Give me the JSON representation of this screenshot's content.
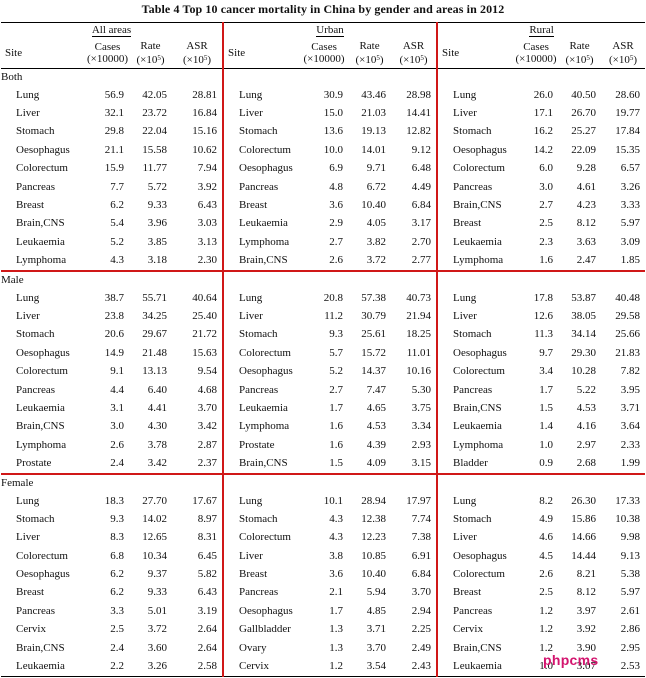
{
  "title": "Table 4   Top 10 cancer mortality in China by gender and areas in 2012",
  "areas": [
    "All areas",
    "Urban",
    "Rural"
  ],
  "column_headers": {
    "site": "Site",
    "cases_line1": "Cases",
    "cases_line2": "(×10000)",
    "rate_line1": "Rate",
    "rate_line2": "(×10",
    "asr_line1": "ASR",
    "asr_line2": "(×10",
    "sup": "5",
    "close": ")"
  },
  "groups": [
    {
      "name": "Both",
      "rows": [
        [
          [
            "Lung",
            "56.9",
            "42.05",
            "28.81"
          ],
          [
            "Lung",
            "30.9",
            "43.46",
            "28.98"
          ],
          [
            "Lung",
            "26.0",
            "40.50",
            "28.60"
          ]
        ],
        [
          [
            "Liver",
            "32.1",
            "23.72",
            "16.84"
          ],
          [
            "Liver",
            "15.0",
            "21.03",
            "14.41"
          ],
          [
            "Liver",
            "17.1",
            "26.70",
            "19.77"
          ]
        ],
        [
          [
            "Stomach",
            "29.8",
            "22.04",
            "15.16"
          ],
          [
            "Stomach",
            "13.6",
            "19.13",
            "12.82"
          ],
          [
            "Stomach",
            "16.2",
            "25.27",
            "17.84"
          ]
        ],
        [
          [
            "Oesophagus",
            "21.1",
            "15.58",
            "10.62"
          ],
          [
            "Colorectum",
            "10.0",
            "14.01",
            "9.12"
          ],
          [
            "Oesophagus",
            "14.2",
            "22.09",
            "15.35"
          ]
        ],
        [
          [
            "Colorectum",
            "15.9",
            "11.77",
            "7.94"
          ],
          [
            "Oesophagus",
            "6.9",
            "9.71",
            "6.48"
          ],
          [
            "Colorectum",
            "6.0",
            "9.28",
            "6.57"
          ]
        ],
        [
          [
            "Pancreas",
            "7.7",
            "5.72",
            "3.92"
          ],
          [
            "Pancreas",
            "4.8",
            "6.72",
            "4.49"
          ],
          [
            "Pancreas",
            "3.0",
            "4.61",
            "3.26"
          ]
        ],
        [
          [
            "Breast",
            "6.2",
            "9.33",
            "6.43"
          ],
          [
            "Breast",
            "3.6",
            "10.40",
            "6.84"
          ],
          [
            "Brain,CNS",
            "2.7",
            "4.23",
            "3.33"
          ]
        ],
        [
          [
            "Brain,CNS",
            "5.4",
            "3.96",
            "3.03"
          ],
          [
            "Leukaemia",
            "2.9",
            "4.05",
            "3.17"
          ],
          [
            "Breast",
            "2.5",
            "8.12",
            "5.97"
          ]
        ],
        [
          [
            "Leukaemia",
            "5.2",
            "3.85",
            "3.13"
          ],
          [
            "Lymphoma",
            "2.7",
            "3.82",
            "2.70"
          ],
          [
            "Leukaemia",
            "2.3",
            "3.63",
            "3.09"
          ]
        ],
        [
          [
            "Lymphoma",
            "4.3",
            "3.18",
            "2.30"
          ],
          [
            "Brain,CNS",
            "2.6",
            "3.72",
            "2.77"
          ],
          [
            "Lymphoma",
            "1.6",
            "2.47",
            "1.85"
          ]
        ]
      ]
    },
    {
      "name": "Male",
      "rows": [
        [
          [
            "Lung",
            "38.7",
            "55.71",
            "40.64"
          ],
          [
            "Lung",
            "20.8",
            "57.38",
            "40.73"
          ],
          [
            "Lung",
            "17.8",
            "53.87",
            "40.48"
          ]
        ],
        [
          [
            "Liver",
            "23.8",
            "34.25",
            "25.40"
          ],
          [
            "Liver",
            "11.2",
            "30.79",
            "21.94"
          ],
          [
            "Liver",
            "12.6",
            "38.05",
            "29.58"
          ]
        ],
        [
          [
            "Stomach",
            "20.6",
            "29.67",
            "21.72"
          ],
          [
            "Stomach",
            "9.3",
            "25.61",
            "18.25"
          ],
          [
            "Stomach",
            "11.3",
            "34.14",
            "25.66"
          ]
        ],
        [
          [
            "Oesophagus",
            "14.9",
            "21.48",
            "15.63"
          ],
          [
            "Colorectum",
            "5.7",
            "15.72",
            "11.01"
          ],
          [
            "Oesophagus",
            "9.7",
            "29.30",
            "21.83"
          ]
        ],
        [
          [
            "Colorectum",
            "9.1",
            "13.13",
            "9.54"
          ],
          [
            "Oesophagus",
            "5.2",
            "14.37",
            "10.16"
          ],
          [
            "Colorectum",
            "3.4",
            "10.28",
            "7.82"
          ]
        ],
        [
          [
            "Pancreas",
            "4.4",
            "6.40",
            "4.68"
          ],
          [
            "Pancreas",
            "2.7",
            "7.47",
            "5.30"
          ],
          [
            "Pancreas",
            "1.7",
            "5.22",
            "3.95"
          ]
        ],
        [
          [
            "Leukaemia",
            "3.1",
            "4.41",
            "3.70"
          ],
          [
            "Leukaemia",
            "1.7",
            "4.65",
            "3.75"
          ],
          [
            "Brain,CNS",
            "1.5",
            "4.53",
            "3.71"
          ]
        ],
        [
          [
            "Brain,CNS",
            "3.0",
            "4.30",
            "3.42"
          ],
          [
            "Lymphoma",
            "1.6",
            "4.53",
            "3.34"
          ],
          [
            "Leukaemia",
            "1.4",
            "4.16",
            "3.64"
          ]
        ],
        [
          [
            "Lymphoma",
            "2.6",
            "3.78",
            "2.87"
          ],
          [
            "Prostate",
            "1.6",
            "4.39",
            "2.93"
          ],
          [
            "Lymphoma",
            "1.0",
            "2.97",
            "2.33"
          ]
        ],
        [
          [
            "Prostate",
            "2.4",
            "3.42",
            "2.37"
          ],
          [
            "Brain,CNS",
            "1.5",
            "4.09",
            "3.15"
          ],
          [
            "Bladder",
            "0.9",
            "2.68",
            "1.99"
          ]
        ]
      ]
    },
    {
      "name": "Female",
      "rows": [
        [
          [
            "Lung",
            "18.3",
            "27.70",
            "17.67"
          ],
          [
            "Lung",
            "10.1",
            "28.94",
            "17.97"
          ],
          [
            "Lung",
            "8.2",
            "26.30",
            "17.33"
          ]
        ],
        [
          [
            "Stomach",
            "9.3",
            "14.02",
            "8.97"
          ],
          [
            "Stomach",
            "4.3",
            "12.38",
            "7.74"
          ],
          [
            "Stomach",
            "4.9",
            "15.86",
            "10.38"
          ]
        ],
        [
          [
            "Liver",
            "8.3",
            "12.65",
            "8.31"
          ],
          [
            "Colorectum",
            "4.3",
            "12.23",
            "7.38"
          ],
          [
            "Liver",
            "4.6",
            "14.66",
            "9.98"
          ]
        ],
        [
          [
            "Colorectum",
            "6.8",
            "10.34",
            "6.45"
          ],
          [
            "Liver",
            "3.8",
            "10.85",
            "6.91"
          ],
          [
            "Oesophagus",
            "4.5",
            "14.44",
            "9.13"
          ]
        ],
        [
          [
            "Oesophagus",
            "6.2",
            "9.37",
            "5.82"
          ],
          [
            "Breast",
            "3.6",
            "10.40",
            "6.84"
          ],
          [
            "Colorectum",
            "2.6",
            "8.21",
            "5.38"
          ]
        ],
        [
          [
            "Breast",
            "6.2",
            "9.33",
            "6.43"
          ],
          [
            "Pancreas",
            "2.1",
            "5.94",
            "3.70"
          ],
          [
            "Breast",
            "2.5",
            "8.12",
            "5.97"
          ]
        ],
        [
          [
            "Pancreas",
            "3.3",
            "5.01",
            "3.19"
          ],
          [
            "Oesophagus",
            "1.7",
            "4.85",
            "2.94"
          ],
          [
            "Pancreas",
            "1.2",
            "3.97",
            "2.61"
          ]
        ],
        [
          [
            "Cervix",
            "2.5",
            "3.72",
            "2.64"
          ],
          [
            "Gallbladder",
            "1.3",
            "3.71",
            "2.25"
          ],
          [
            "Cervix",
            "1.2",
            "3.92",
            "2.86"
          ]
        ],
        [
          [
            "Brain,CNS",
            "2.4",
            "3.60",
            "2.64"
          ],
          [
            "Ovary",
            "1.3",
            "3.70",
            "2.49"
          ],
          [
            "Brain,CNS",
            "1.2",
            "3.90",
            "2.95"
          ]
        ],
        [
          [
            "Leukaemia",
            "2.2",
            "3.26",
            "2.58"
          ],
          [
            "Cervix",
            "1.2",
            "3.54",
            "2.43"
          ],
          [
            "Leukaemia",
            "1.0",
            "3.07",
            "2.53"
          ]
        ]
      ]
    }
  ],
  "watermark": "phpcms"
}
